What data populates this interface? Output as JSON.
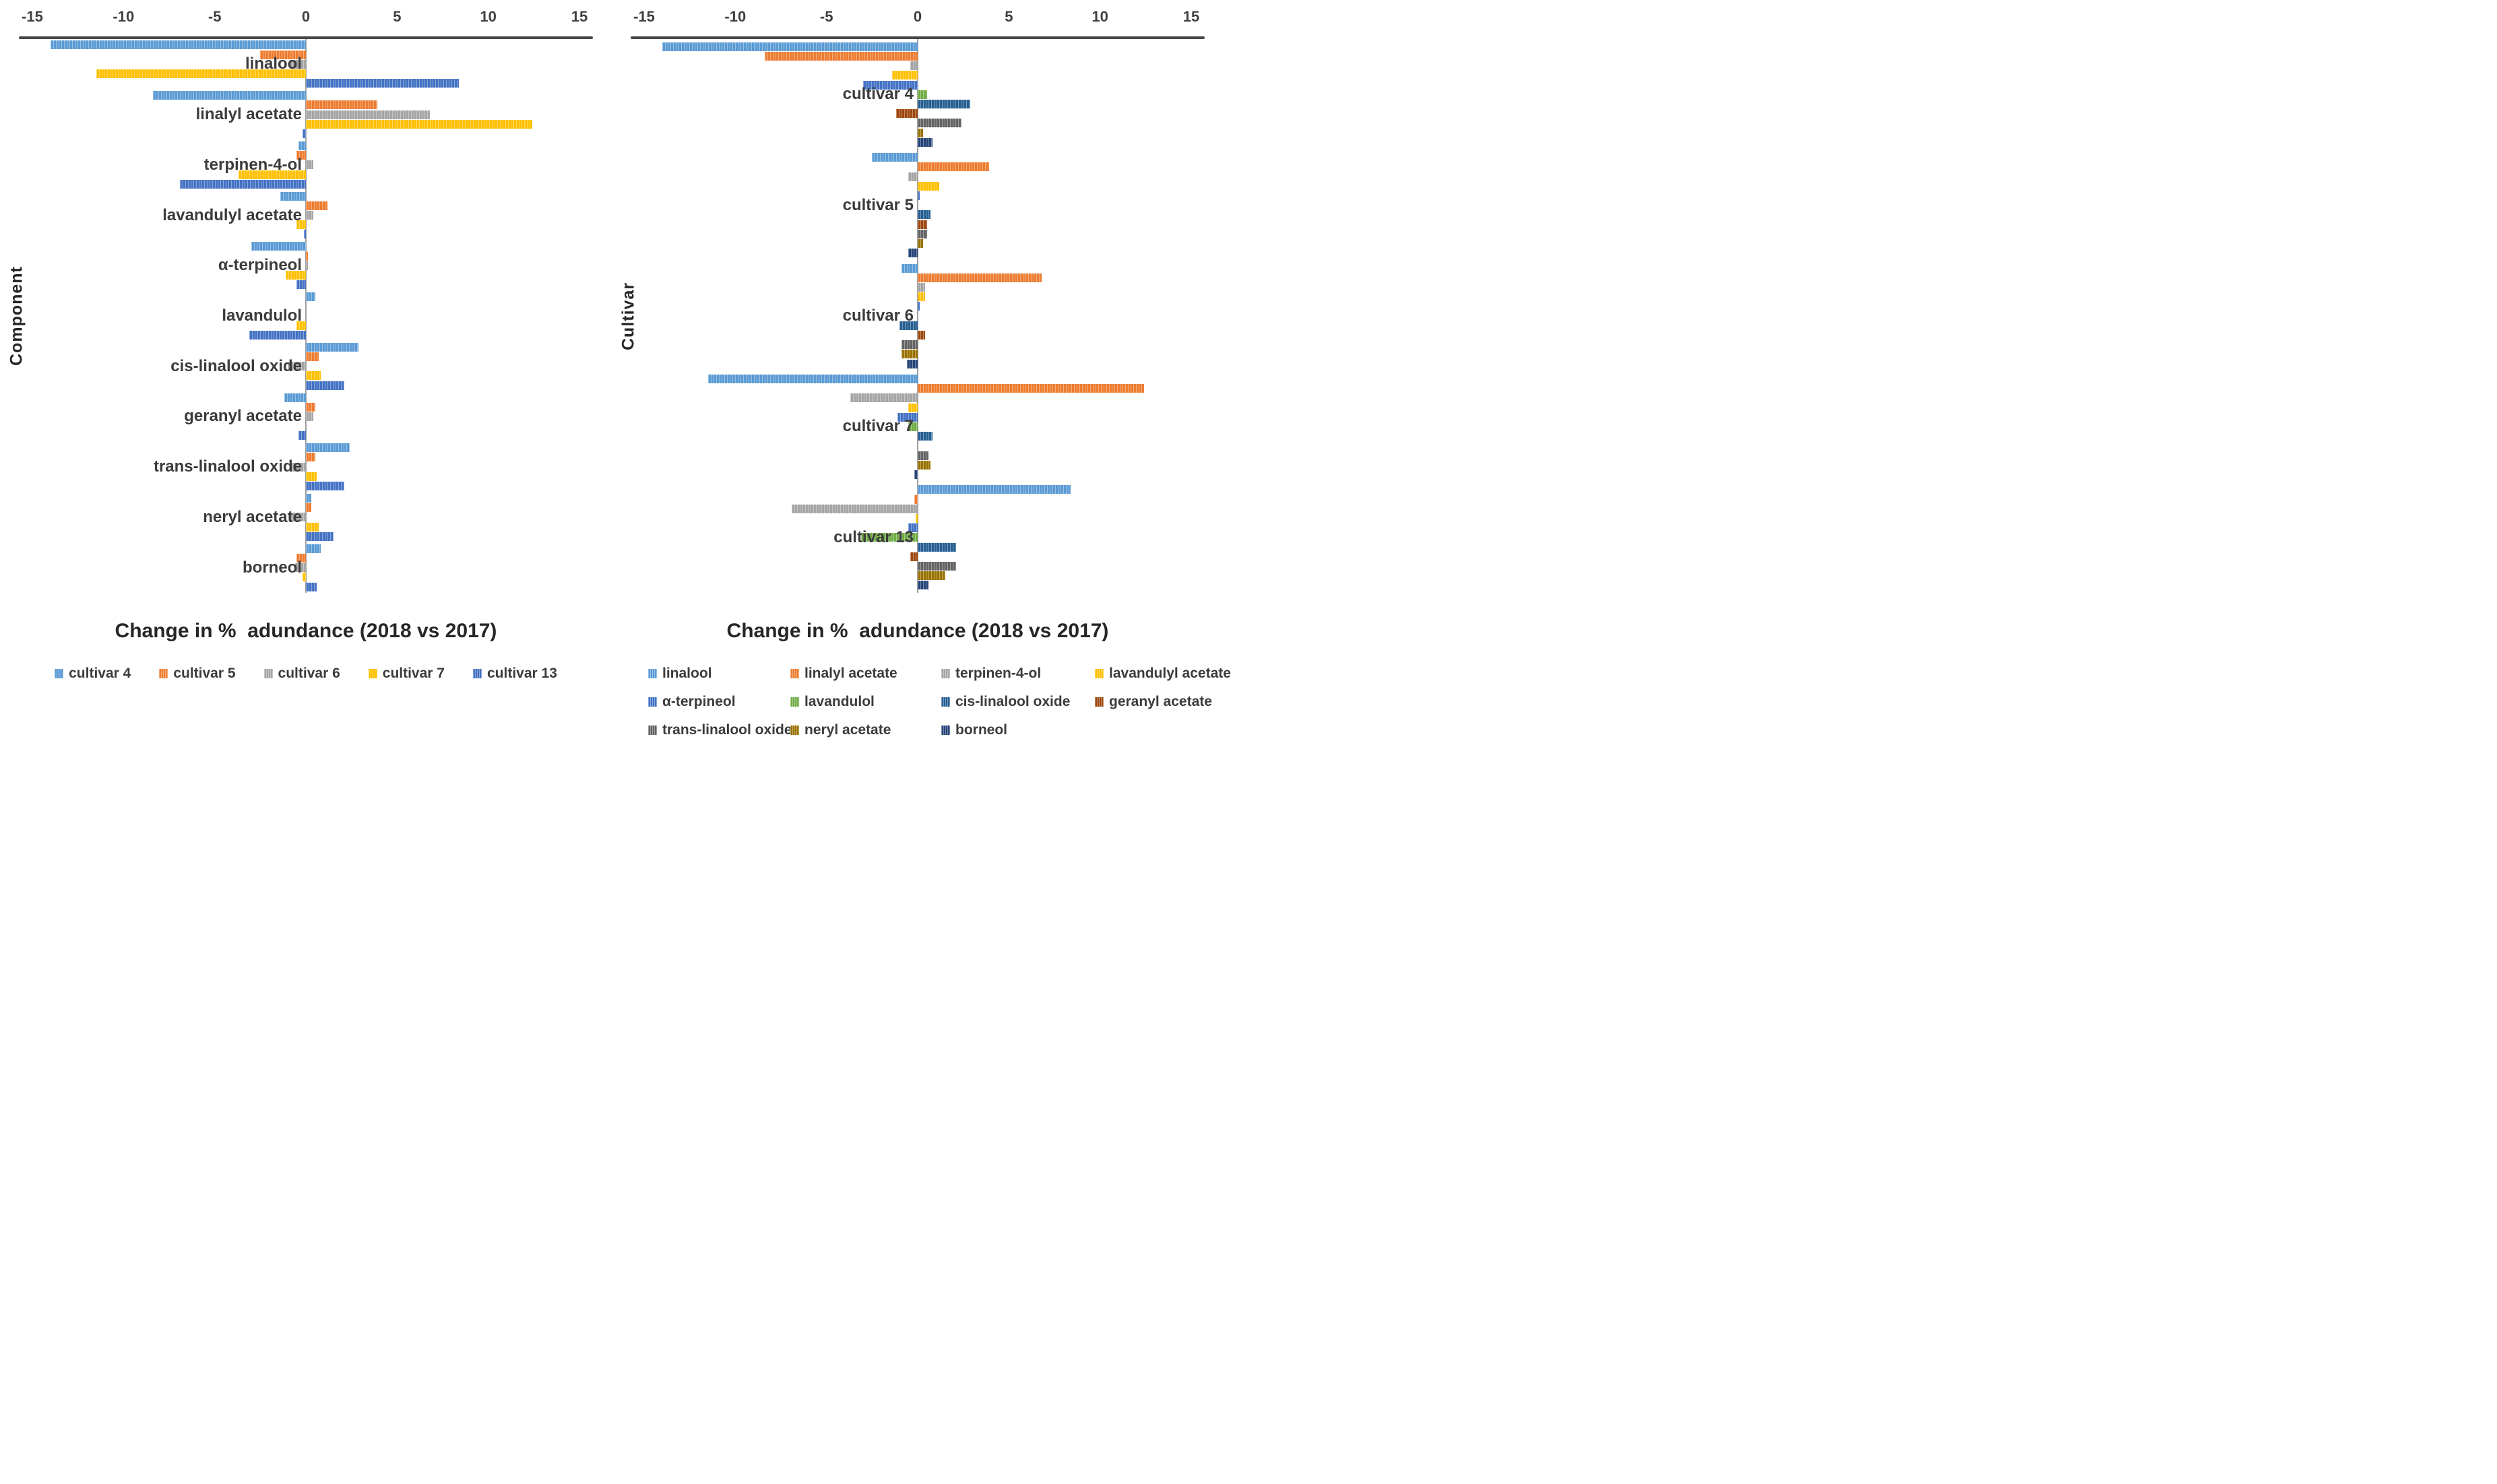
{
  "style": {
    "axis_line_color": "#474747",
    "zero_line_color": "#9f9f9f",
    "text_color": "#3b3b3b",
    "title_color": "#262626",
    "background": "#ffffff"
  },
  "chart_data": [
    {
      "type": "bar",
      "orientation": "horizontal",
      "title": "Change in %  adundance (2018 vs 2017)",
      "xlabel": "Change in %  adundance (2018 vs 2017)",
      "ylabel": "Component",
      "xlim": [
        -15,
        15
      ],
      "xticks": [
        -15,
        -10,
        -5,
        0,
        5,
        10,
        15
      ],
      "grid": false,
      "legend_position": "bottom",
      "legend_layout": "row",
      "categories": [
        "linalool",
        "linalyl acetate",
        "terpinen-4-ol",
        "lavandulyl acetate",
        "α-terpineol",
        "lavandulol",
        "cis-linalool oxide",
        "geranyl acetate",
        "trans-linalool oxide",
        "neryl acetate",
        "borneol"
      ],
      "series": [
        {
          "name": "cultivar 4",
          "color": "#5B9BD5",
          "values": [
            -14.0,
            -8.4,
            -0.4,
            -1.4,
            -3.0,
            0.5,
            2.9,
            -1.2,
            2.4,
            0.3,
            0.8
          ]
        },
        {
          "name": "cultivar 5",
          "color": "#ED7D31",
          "values": [
            -2.5,
            3.9,
            -0.5,
            1.2,
            0.1,
            0.0,
            0.7,
            0.5,
            0.5,
            0.3,
            -0.5
          ]
        },
        {
          "name": "cultivar 6",
          "color": "#A5A5A5",
          "values": [
            -0.9,
            6.8,
            0.4,
            0.4,
            0.1,
            0.0,
            -1.0,
            0.4,
            -0.9,
            -0.9,
            -0.6
          ]
        },
        {
          "name": "cultivar 7",
          "color": "#FFC000",
          "values": [
            -11.5,
            12.4,
            -3.7,
            -0.5,
            -1.1,
            -0.5,
            0.8,
            0.0,
            0.6,
            0.7,
            -0.2
          ]
        },
        {
          "name": "cultivar 13",
          "color": "#4472C4",
          "values": [
            8.4,
            -0.2,
            -6.9,
            -0.1,
            -0.5,
            -3.1,
            2.1,
            -0.4,
            2.1,
            1.5,
            0.6
          ]
        }
      ]
    },
    {
      "type": "bar",
      "orientation": "horizontal",
      "title": "Change in %  adundance (2018 vs 2017)",
      "xlabel": "Change in %  adundance (2018 vs 2017)",
      "ylabel": "Cultivar",
      "xlim": [
        -15,
        15
      ],
      "xticks": [
        -15,
        -10,
        -5,
        0,
        5,
        10,
        15
      ],
      "grid": false,
      "legend_position": "bottom",
      "legend_layout": "grid-4",
      "categories": [
        "cultivar 4",
        "cultivar 5",
        "cultivar 6",
        "cultivar 7",
        "cultivar 13"
      ],
      "series": [
        {
          "name": "linalool",
          "color": "#5B9BD5",
          "values": [
            -14.0,
            -2.5,
            -0.9,
            -11.5,
            8.4
          ]
        },
        {
          "name": "linalyl acetate",
          "color": "#ED7D31",
          "values": [
            -8.4,
            3.9,
            6.8,
            12.4,
            -0.2
          ]
        },
        {
          "name": "terpinen-4-ol",
          "color": "#A5A5A5",
          "values": [
            -0.4,
            -0.5,
            0.4,
            -3.7,
            -6.9
          ]
        },
        {
          "name": "lavandulyl acetate",
          "color": "#FFC000",
          "values": [
            -1.4,
            1.2,
            0.4,
            -0.5,
            -0.1
          ]
        },
        {
          "name": "α-terpineol",
          "color": "#4472C4",
          "values": [
            -3.0,
            0.1,
            0.1,
            -1.1,
            -0.5
          ]
        },
        {
          "name": "lavandulol",
          "color": "#70AD47",
          "values": [
            0.5,
            0.0,
            0.0,
            -0.5,
            -3.1
          ]
        },
        {
          "name": "cis-linalool oxide",
          "color": "#255E91",
          "values": [
            2.9,
            0.7,
            -1.0,
            0.8,
            2.1
          ]
        },
        {
          "name": "geranyl acetate",
          "color": "#9E480E",
          "values": [
            -1.2,
            0.5,
            0.4,
            0.0,
            -0.4
          ]
        },
        {
          "name": "trans-linalool oxide",
          "color": "#636363",
          "values": [
            2.4,
            0.5,
            -0.9,
            0.6,
            2.1
          ]
        },
        {
          "name": "neryl acetate",
          "color": "#997300",
          "values": [
            0.3,
            0.3,
            -0.9,
            0.7,
            1.5
          ]
        },
        {
          "name": "borneol",
          "color": "#264478",
          "values": [
            0.8,
            -0.5,
            -0.6,
            -0.2,
            0.6
          ]
        }
      ]
    }
  ]
}
